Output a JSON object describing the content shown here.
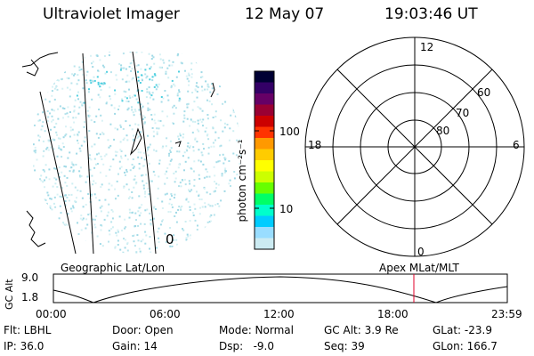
{
  "header": {
    "instrument": "Ultraviolet Imager",
    "date": "12 May 07",
    "time": "19:03:46 UT"
  },
  "geo_panel": {
    "label": "Geographic Lat/Lon",
    "corner_label": "0"
  },
  "colorbar": {
    "unit": "photon cm⁻²s⁻¹",
    "ticks": [
      "100",
      "10"
    ],
    "colors": [
      "#000033",
      "#330066",
      "#660066",
      "#990033",
      "#cc0000",
      "#ff3300",
      "#ff9900",
      "#ffcc00",
      "#ffff00",
      "#ccff00",
      "#66ff00",
      "#00ff66",
      "#00ffcc",
      "#00ccff",
      "#99ddff",
      "#ccebf2"
    ]
  },
  "polar_panel": {
    "label": "Apex MLat/MLT",
    "mlt_labels": {
      "top": "12",
      "bottom": "0",
      "left": "18",
      "right": "6"
    },
    "lat_labels": [
      "60",
      "70",
      "80"
    ]
  },
  "gc_alt": {
    "axis_label": "GC Alt",
    "ymax": "9.0",
    "ymin": "1.8",
    "xticks": [
      "00:00",
      "06:00",
      "12:00",
      "18:00",
      "23:59"
    ],
    "marker_color": "#e0002a"
  },
  "info": {
    "filter": "Flt: LBHL",
    "ip": "IP: 36.0",
    "door": "Door: Open",
    "gain": "Gain: 14",
    "mode": "Mode: Normal",
    "dsp": "Dsp:   -9.0",
    "gcalt": "GC Alt: 3.9 Re",
    "seq": "Seq: 39",
    "glat": "GLat: -23.9",
    "glon": "GLon: 166.7"
  }
}
